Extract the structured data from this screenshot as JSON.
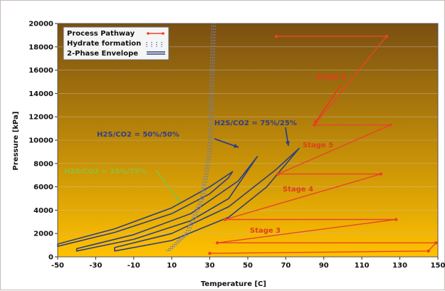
{
  "chart_data": {
    "type": "line",
    "xlabel": "Temperature [C]",
    "ylabel": "Pressure [kPa]",
    "xlim": [
      -50,
      150
    ],
    "ylim": [
      0,
      20000
    ],
    "x_ticks": [
      "-50",
      "-30",
      "-10",
      "10",
      "30",
      "50",
      "70",
      "90",
      "110",
      "130",
      "150"
    ],
    "x_tick_values": [
      -50,
      -30,
      -10,
      10,
      30,
      50,
      70,
      90,
      110,
      130,
      150
    ],
    "y_ticks": [
      "0",
      "2000",
      "4000",
      "6000",
      "8000",
      "10000",
      "12000",
      "14000",
      "16000",
      "18000",
      "20000"
    ],
    "y_tick_values": [
      0,
      2000,
      4000,
      6000,
      8000,
      10000,
      12000,
      14000,
      16000,
      18000,
      20000
    ],
    "grid": "horizontal",
    "legend": {
      "position": "top-left",
      "entries": [
        {
          "label": "Process Pathway",
          "color": "#e8452a",
          "style": "line-with-dots"
        },
        {
          "label": "Hydrate formation",
          "color": "#5a6fa8",
          "style": "dotted"
        },
        {
          "label": "2-Phase Envelope",
          "color": "#3d4f8a",
          "style": "double"
        }
      ]
    },
    "colors": {
      "plot_top": "#7a4f12",
      "plot_bottom": "#ffc100",
      "process": "#e8452a",
      "envelope": "#2f3f7d",
      "hydrate": "#6d7fae",
      "ann_blue": "#2f3f8a",
      "ann_green": "#8fbf3a",
      "ann_red": "#e0401c"
    },
    "series": [
      {
        "name": "Process Pathway",
        "x": [
          30,
          145,
          149,
          34,
          128,
          38,
          120,
          66,
          125,
          85,
          123,
          65
        ],
        "y": [
          300,
          500,
          1200,
          1200,
          3200,
          3200,
          7100,
          7100,
          11300,
          11300,
          18900,
          18900
        ]
      },
      {
        "name": "2-Phase Envelope",
        "envelopes": [
          {
            "label": "H2S/CO2 = 25%/75%",
            "lower_x": [
              -50,
              -20,
              10,
              30,
              40
            ],
            "lower_y": [
              900,
              2100,
              3700,
              5400,
              6800
            ],
            "upper_x": [
              -50,
              -20,
              10,
              30,
              42
            ],
            "upper_y": [
              1100,
              2400,
              4200,
              6000,
              7300
            ]
          },
          {
            "label": "H2S/CO2 = 50%/50%",
            "lower_x": [
              -40,
              -10,
              20,
              40,
              55
            ],
            "lower_y": [
              500,
              1500,
              3100,
              5000,
              8600
            ],
            "upper_x": [
              -40,
              -10,
              20,
              45,
              55
            ],
            "upper_y": [
              700,
              1900,
              3700,
              6500,
              8600
            ]
          },
          {
            "label": "H2S/CO2 = 75%/25%",
            "lower_x": [
              -20,
              10,
              40,
              60,
              77
            ],
            "lower_y": [
              500,
              1400,
              3400,
              6000,
              9300
            ],
            "upper_x": [
              -20,
              10,
              40,
              65,
              77
            ],
            "upper_y": [
              800,
              2000,
              4300,
              7500,
              9300
            ]
          }
        ]
      },
      {
        "name": "Hydrate formation",
        "x": [
          8,
          18,
          26,
          30,
          31,
          32
        ],
        "y": [
          500,
          2000,
          5000,
          9000,
          14000,
          20000
        ]
      }
    ],
    "annotations": [
      {
        "text": "H2S/CO2 = 25%/75%",
        "color": "ann_green"
      },
      {
        "text": "H2S/CO2 = 50%/50%",
        "color": "ann_blue"
      },
      {
        "text": "H2S/CO2 = 75%/25%",
        "color": "ann_blue"
      },
      {
        "text": "Stage 3",
        "color": "ann_red"
      },
      {
        "text": "Stage 4",
        "color": "ann_red"
      },
      {
        "text": "Stage 5",
        "color": "ann_red"
      },
      {
        "text": "Stage 6",
        "color": "ann_red"
      }
    ]
  }
}
